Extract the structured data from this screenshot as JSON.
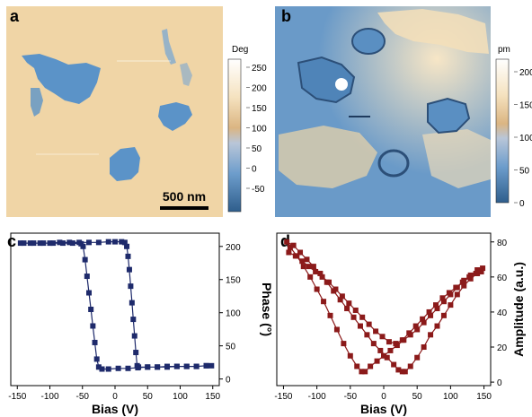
{
  "panels": {
    "a": {
      "letter": "a",
      "colorbar_title": "Deg",
      "colorbar_ticks": [
        "250",
        "200",
        "150",
        "100",
        "50",
        "0",
        "-50"
      ],
      "scale_bar": "500 nm"
    },
    "b": {
      "letter": "b",
      "colorbar_title": "pm",
      "colorbar_ticks": [
        "200",
        "150",
        "100",
        "50",
        "0"
      ]
    },
    "c": {
      "letter": "c"
    },
    "d": {
      "letter": "d"
    }
  },
  "colors": {
    "map_background": "#f0d5a6",
    "map_domain": "#5b93c8",
    "phase_series": "#1e2a6b",
    "amplitude_series": "#8b1a1a"
  },
  "chart_data": [
    {
      "panel": "c",
      "type": "scatter",
      "xlabel": "Bias (V)",
      "ylabel": "Phase (°)",
      "xlim": [
        -160,
        160
      ],
      "ylim": [
        -10,
        220
      ],
      "xticks": [
        -150,
        -100,
        -50,
        0,
        50,
        100,
        150
      ],
      "yticks": [
        0,
        50,
        100,
        150,
        200
      ],
      "series": [
        {
          "values": [
            [
              -145,
              205
            ],
            [
              -130,
              205
            ],
            [
              -115,
              205
            ],
            [
              -100,
              205
            ],
            [
              -85,
              206
            ],
            [
              -70,
              206
            ],
            [
              -55,
              206
            ],
            [
              -40,
              206
            ],
            [
              -25,
              206
            ],
            [
              -10,
              207
            ],
            [
              0,
              207
            ],
            [
              10,
              207
            ],
            [
              15,
              206
            ],
            [
              18,
              200
            ],
            [
              20,
              185
            ],
            [
              22,
              165
            ],
            [
              24,
              140
            ],
            [
              26,
              115
            ],
            [
              28,
              90
            ],
            [
              30,
              65
            ],
            [
              32,
              40
            ],
            [
              34,
              20
            ],
            [
              36,
              18
            ],
            [
              50,
              18
            ],
            [
              65,
              18
            ],
            [
              80,
              19
            ],
            [
              95,
              19
            ],
            [
              110,
              19
            ],
            [
              125,
              19
            ],
            [
              140,
              20
            ],
            [
              148,
              20
            ],
            [
              140,
              20
            ],
            [
              125,
              19
            ],
            [
              110,
              19
            ],
            [
              95,
              19
            ],
            [
              80,
              18
            ],
            [
              65,
              18
            ],
            [
              50,
              18
            ],
            [
              35,
              17
            ],
            [
              20,
              16
            ],
            [
              5,
              16
            ],
            [
              -10,
              15
            ],
            [
              -20,
              15
            ],
            [
              -25,
              18
            ],
            [
              -28,
              30
            ],
            [
              -31,
              55
            ],
            [
              -34,
              80
            ],
            [
              -37,
              105
            ],
            [
              -40,
              130
            ],
            [
              -43,
              155
            ],
            [
              -46,
              180
            ],
            [
              -49,
              200
            ],
            [
              -52,
              204
            ],
            [
              -65,
              205
            ],
            [
              -80,
              205
            ],
            [
              -95,
              205
            ],
            [
              -110,
              205
            ],
            [
              -125,
              205
            ],
            [
              -140,
              205
            ]
          ]
        }
      ]
    },
    {
      "panel": "d",
      "type": "scatter",
      "xlabel": "Bias (V)",
      "ylabel": "Amplitude (a.u.)",
      "xlim": [
        -160,
        160
      ],
      "ylim": [
        -2,
        85
      ],
      "xticks": [
        -150,
        -100,
        -50,
        0,
        50,
        100,
        150
      ],
      "yticks": [
        0,
        20,
        40,
        60,
        80
      ],
      "series": [
        {
          "values": [
            [
              -145,
              80
            ],
            [
              -135,
              78
            ],
            [
              -125,
              74
            ],
            [
              -115,
              70
            ],
            [
              -105,
              66
            ],
            [
              -95,
              62
            ],
            [
              -85,
              57
            ],
            [
              -75,
              52
            ],
            [
              -65,
              47
            ],
            [
              -55,
              42
            ],
            [
              -45,
              37
            ],
            [
              -35,
              32
            ],
            [
              -25,
              27
            ],
            [
              -15,
              22
            ],
            [
              -5,
              18
            ],
            [
              5,
              14
            ],
            [
              15,
              10
            ],
            [
              22,
              7
            ],
            [
              28,
              6
            ],
            [
              32,
              6
            ],
            [
              40,
              9
            ],
            [
              50,
              14
            ],
            [
              60,
              20
            ],
            [
              70,
              27
            ],
            [
              80,
              32
            ],
            [
              90,
              38
            ],
            [
              100,
              44
            ],
            [
              110,
              50
            ],
            [
              120,
              55
            ],
            [
              130,
              59
            ],
            [
              140,
              62
            ],
            [
              148,
              65
            ],
            [
              140,
              64
            ],
            [
              130,
              61
            ],
            [
              120,
              58
            ],
            [
              110,
              54
            ],
            [
              100,
              50
            ],
            [
              90,
              46
            ],
            [
              80,
              42
            ],
            [
              70,
              38
            ],
            [
              60,
              34
            ],
            [
              50,
              30
            ],
            [
              40,
              27
            ],
            [
              30,
              24
            ],
            [
              20,
              21
            ],
            [
              10,
              18
            ],
            [
              0,
              15
            ],
            [
              -10,
              12
            ],
            [
              -20,
              9
            ],
            [
              -28,
              6
            ],
            [
              -33,
              6
            ],
            [
              -40,
              9
            ],
            [
              -50,
              15
            ],
            [
              -60,
              22
            ],
            [
              -70,
              30
            ],
            [
              -80,
              38
            ],
            [
              -90,
              46
            ],
            [
              -100,
              53
            ],
            [
              -110,
              60
            ],
            [
              -120,
              66
            ],
            [
              -130,
              72
            ],
            [
              -140,
              77
            ],
            [
              -142,
              74
            ],
            [
              -132,
              72
            ],
            [
              -122,
              69
            ],
            [
              -112,
              66
            ],
            [
              -102,
              63
            ],
            [
              -92,
              60
            ],
            [
              -82,
              57
            ],
            [
              -72,
              53
            ],
            [
              -62,
              49
            ],
            [
              -52,
              45
            ],
            [
              -42,
              41
            ],
            [
              -32,
              37
            ],
            [
              -22,
              33
            ],
            [
              -12,
              29
            ],
            [
              -2,
              26
            ],
            [
              8,
              23
            ],
            [
              18,
              22
            ],
            [
              28,
              24
            ],
            [
              38,
              28
            ],
            [
              48,
              32
            ],
            [
              58,
              36
            ],
            [
              68,
              40
            ],
            [
              78,
              44
            ],
            [
              88,
              48
            ],
            [
              98,
              51
            ],
            [
              108,
              54
            ],
            [
              118,
              57
            ],
            [
              128,
              60
            ],
            [
              138,
              62
            ],
            [
              146,
              63
            ]
          ]
        }
      ]
    }
  ]
}
